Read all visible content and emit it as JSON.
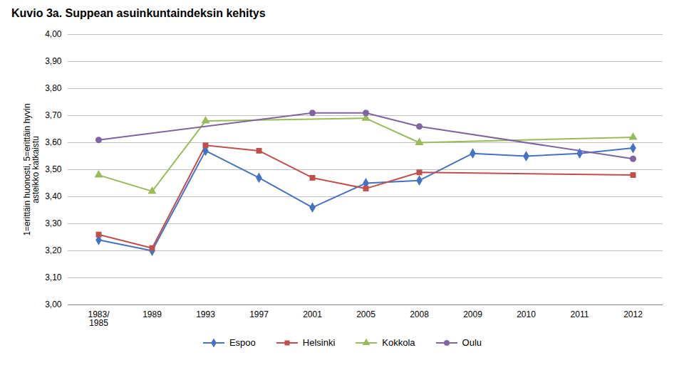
{
  "chart_data": {
    "type": "line",
    "title": "Kuvio 3a. Suppean asuinkuntaindeksin kehitys",
    "ylabel": "1=erittäin huonosti, 5=erittäin hyvin\nasteikko katkaistu",
    "categories": [
      "1983/\n1985",
      "1989",
      "1993",
      "1997",
      "2001",
      "2005",
      "2008",
      "2009",
      "2010",
      "2011",
      "2012"
    ],
    "ylim": [
      3.0,
      4.0
    ],
    "yticks": [
      {
        "value": 3.0,
        "label": "3,00"
      },
      {
        "value": 3.1,
        "label": "3,10"
      },
      {
        "value": 3.2,
        "label": "3,20"
      },
      {
        "value": 3.3,
        "label": "3,30"
      },
      {
        "value": 3.4,
        "label": "3,40"
      },
      {
        "value": 3.5,
        "label": "3,50"
      },
      {
        "value": 3.6,
        "label": "3,60"
      },
      {
        "value": 3.7,
        "label": "3,70"
      },
      {
        "value": 3.8,
        "label": "3,80"
      },
      {
        "value": 3.9,
        "label": "3,90"
      },
      {
        "value": 4.0,
        "label": "4,00"
      }
    ],
    "grid": true,
    "legend": "bottom",
    "series": [
      {
        "name": "Espoo",
        "color": "#4472C4",
        "marker": "diamond",
        "x": [
          "1983/\n1985",
          "1989",
          "1993",
          "1997",
          "2001",
          "2005",
          "2008",
          "2009",
          "2010",
          "2011",
          "2012"
        ],
        "values": [
          3.24,
          3.2,
          3.57,
          3.47,
          3.36,
          3.45,
          3.46,
          3.56,
          3.55,
          3.56,
          3.58
        ]
      },
      {
        "name": "Helsinki",
        "color": "#C0504D",
        "marker": "square",
        "x": [
          "1983/\n1985",
          "1989",
          "1993",
          "1997",
          "2001",
          "2005",
          "2008",
          "2012"
        ],
        "values": [
          3.26,
          3.21,
          3.59,
          3.57,
          3.47,
          3.43,
          3.49,
          3.48
        ]
      },
      {
        "name": "Kokkola",
        "color": "#9BBB59",
        "marker": "triangle",
        "x": [
          "1983/\n1985",
          "1989",
          "1993",
          "2005",
          "2008",
          "2012"
        ],
        "values": [
          3.48,
          3.42,
          3.68,
          3.69,
          3.6,
          3.62
        ]
      },
      {
        "name": "Oulu",
        "color": "#8064A2",
        "marker": "circle",
        "x": [
          "1983/\n1985",
          "2001",
          "2005",
          "2008",
          "2012"
        ],
        "values": [
          3.61,
          3.71,
          3.71,
          3.66,
          3.54
        ]
      }
    ]
  }
}
